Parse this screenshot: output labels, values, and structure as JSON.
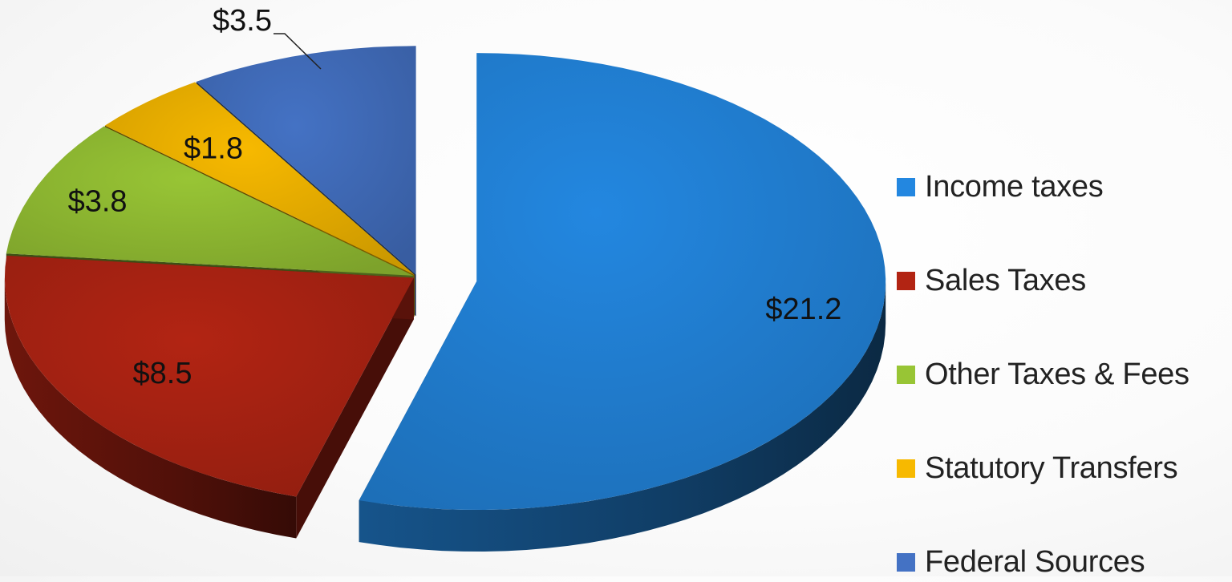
{
  "chart_data": {
    "type": "pie",
    "style": "3d-exploded",
    "title": "",
    "slices": [
      {
        "name": "Income taxes",
        "value": 21.2,
        "label": "$21.2",
        "color": "#2387e0"
      },
      {
        "name": "Sales Taxes",
        "value": 8.5,
        "label": "$8.5",
        "color": "#b22413"
      },
      {
        "name": "Other Taxes & Fees",
        "value": 3.8,
        "label": "$3.8",
        "color": "#98c535"
      },
      {
        "name": "Statutory Transfers",
        "value": 1.8,
        "label": "$1.8",
        "color": "#f7b900"
      },
      {
        "name": "Federal Sources",
        "value": 3.5,
        "label": "$3.5",
        "color": "#4472c4"
      }
    ],
    "legend_position": "right"
  }
}
